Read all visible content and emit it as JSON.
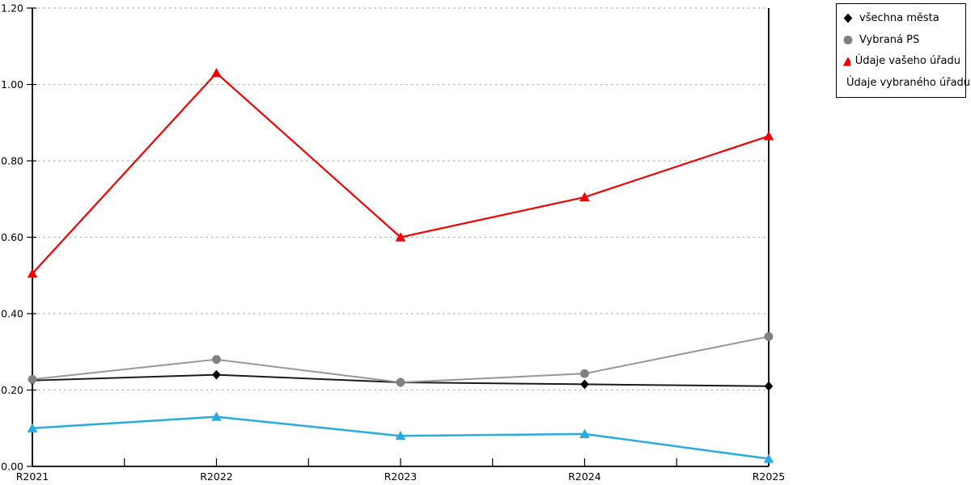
{
  "chart_data": {
    "type": "line",
    "title": "",
    "xlabel": "",
    "ylabel": "",
    "categories": [
      "R2021",
      "R2022",
      "R2023",
      "R2024",
      "R2025"
    ],
    "series": [
      {
        "name": "všechna města",
        "marker": "diamond",
        "color": "#1a1a1a",
        "marker_color": "#000000",
        "line_width": 2,
        "values": [
          0.225,
          0.24,
          0.22,
          0.215,
          0.21
        ]
      },
      {
        "name": "Vybraná PS",
        "marker": "circle",
        "color": "#979797",
        "marker_color": "#808080",
        "line_width": 2,
        "values": [
          0.228,
          0.28,
          0.22,
          0.243,
          0.34
        ]
      },
      {
        "name": "Údaje vašeho úřadu",
        "marker": "triangle",
        "color": "#f40000",
        "marker_color": "#f40000",
        "line_width": 2.2,
        "values": [
          0.505,
          1.03,
          0.6,
          0.705,
          0.865
        ]
      },
      {
        "name": "Údaje vybraného úřadu",
        "marker": "triangle",
        "color": "#29abe2",
        "marker_color": "#29abe2",
        "line_width": 2.5,
        "values": [
          0.1,
          0.13,
          0.08,
          0.085,
          0.02
        ]
      }
    ],
    "ylim": [
      0,
      1.2
    ],
    "y_tick_values": [
      0,
      0.2,
      0.4,
      0.6,
      0.8,
      1.0,
      1.2
    ],
    "y_ticks": [
      "0.00",
      "0.20",
      "0.40",
      "0.60",
      "0.80",
      "1.00",
      "1.20"
    ],
    "grid": "horizontal-dotted",
    "grid_color": "#b4b4b4",
    "axis_color": "#000000",
    "legend_position": "outside-top-right"
  }
}
